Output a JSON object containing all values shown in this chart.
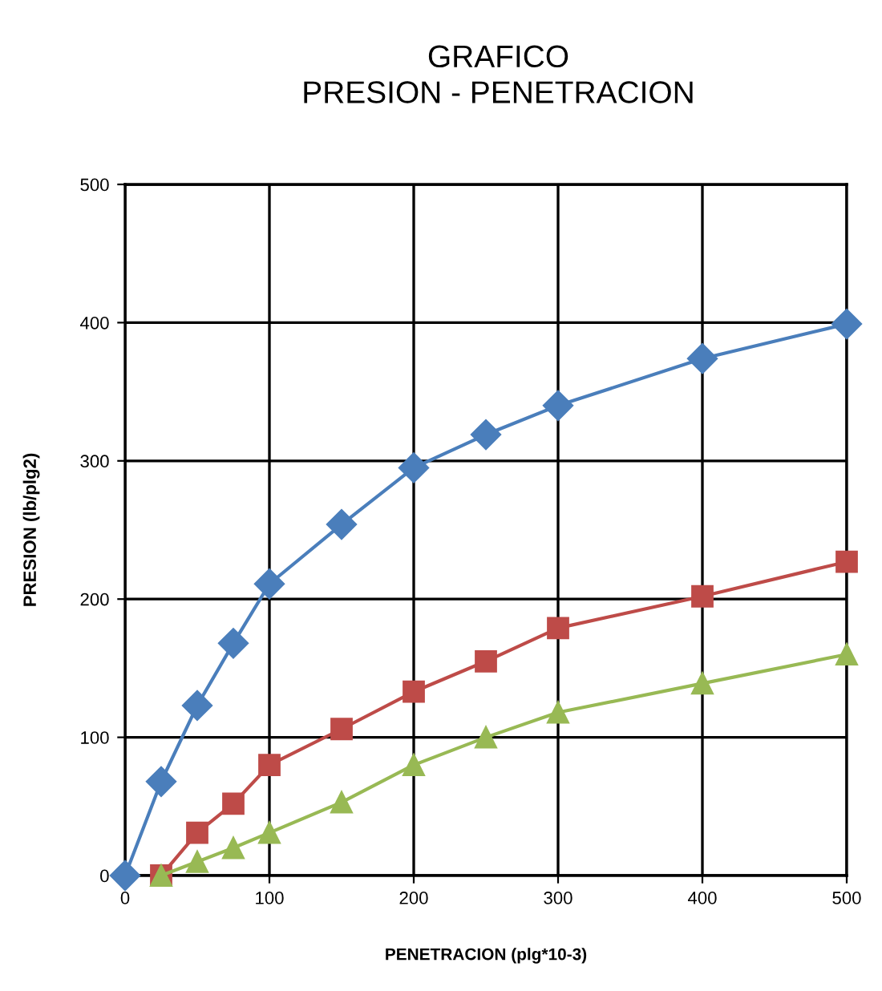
{
  "chart_data": {
    "type": "line",
    "title": "GRAFICO\nPRESION - PENETRACION",
    "xlabel": "PENETRACION (plg*10-3)",
    "ylabel": "PRESION (lb/plg2)",
    "xlim": [
      0,
      500
    ],
    "xticks": [
      0,
      100,
      200,
      300,
      400,
      500
    ],
    "ylim": [
      0,
      500
    ],
    "yticks": [
      0,
      100,
      200,
      300,
      400,
      500
    ],
    "grid": true,
    "series": [
      {
        "color": "#4a7ebb",
        "marker": "diamond",
        "x": [
          0,
          25,
          50,
          75,
          100,
          150,
          200,
          250,
          300,
          400,
          500
        ],
        "values": [
          0,
          68,
          123,
          168,
          211,
          254,
          295,
          319,
          340,
          374,
          399
        ]
      },
      {
        "color": "#be4b48",
        "marker": "square",
        "x": [
          25,
          50,
          75,
          100,
          150,
          200,
          250,
          300,
          400,
          500
        ],
        "values": [
          0,
          31,
          52,
          80,
          106,
          133,
          155,
          179,
          202,
          227
        ]
      },
      {
        "color": "#98b954",
        "marker": "triangle",
        "x": [
          25,
          50,
          75,
          100,
          150,
          200,
          250,
          300,
          400,
          500
        ],
        "values": [
          0,
          10,
          20,
          31,
          53,
          80,
          100,
          118,
          139,
          160
        ]
      }
    ]
  }
}
